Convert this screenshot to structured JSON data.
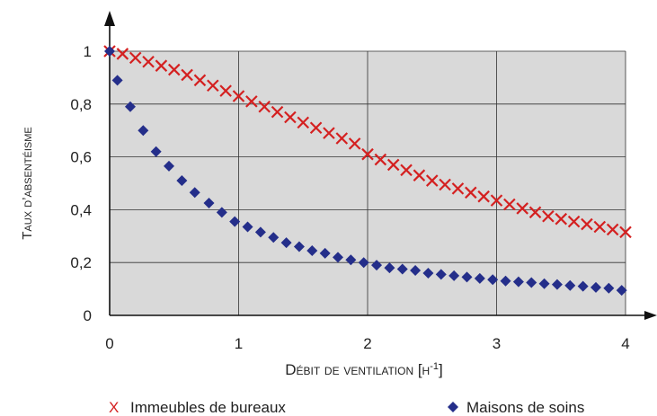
{
  "chart_data": {
    "type": "scatter",
    "xlabel": "Débit de ventilation [h",
    "xlabel_sup": "-1",
    "xlabel_end": "]",
    "ylabel": "Taux d’absentéisme",
    "xlim": [
      0,
      4
    ],
    "ylim": [
      0,
      1
    ],
    "x_ticks": [
      0,
      1,
      2,
      3,
      4
    ],
    "x_tick_labels": [
      "0",
      "1",
      "2",
      "3",
      "4"
    ],
    "y_ticks": [
      0,
      0.2,
      0.4,
      0.6,
      0.8,
      1
    ],
    "y_tick_labels": [
      "0",
      "0,2",
      "0,4",
      "0,6",
      "0,8",
      "1"
    ],
    "grid": true,
    "legend_position": "bottom",
    "series": [
      {
        "name": "Immeubles de bureaux",
        "marker": "x",
        "color": "#d42020",
        "x": [
          0,
          0.1,
          0.2,
          0.3,
          0.4,
          0.5,
          0.6,
          0.7,
          0.8,
          0.9,
          1.0,
          1.1,
          1.2,
          1.3,
          1.4,
          1.5,
          1.6,
          1.7,
          1.8,
          1.9,
          2.0,
          2.1,
          2.2,
          2.3,
          2.4,
          2.5,
          2.6,
          2.7,
          2.8,
          2.9,
          3.0,
          3.1,
          3.2,
          3.3,
          3.4,
          3.5,
          3.6,
          3.7,
          3.8,
          3.9,
          4.0
        ],
        "y": [
          1.0,
          0.99,
          0.975,
          0.96,
          0.945,
          0.93,
          0.91,
          0.89,
          0.87,
          0.85,
          0.83,
          0.81,
          0.79,
          0.77,
          0.75,
          0.73,
          0.71,
          0.69,
          0.67,
          0.65,
          0.61,
          0.59,
          0.57,
          0.55,
          0.53,
          0.51,
          0.495,
          0.48,
          0.465,
          0.45,
          0.435,
          0.42,
          0.405,
          0.39,
          0.375,
          0.365,
          0.355,
          0.345,
          0.335,
          0.325,
          0.315
        ]
      },
      {
        "name": "Maisons de soins",
        "marker": "diamond",
        "color": "#242e8a",
        "x": [
          0,
          0.06,
          0.16,
          0.26,
          0.36,
          0.46,
          0.56,
          0.66,
          0.77,
          0.87,
          0.97,
          1.07,
          1.17,
          1.27,
          1.37,
          1.47,
          1.57,
          1.67,
          1.77,
          1.87,
          1.97,
          2.07,
          2.17,
          2.27,
          2.37,
          2.47,
          2.57,
          2.67,
          2.77,
          2.87,
          2.97,
          3.07,
          3.17,
          3.27,
          3.37,
          3.47,
          3.57,
          3.67,
          3.77,
          3.87,
          3.97
        ],
        "y": [
          1.0,
          0.89,
          0.79,
          0.7,
          0.62,
          0.565,
          0.51,
          0.465,
          0.425,
          0.39,
          0.355,
          0.335,
          0.315,
          0.295,
          0.275,
          0.26,
          0.245,
          0.235,
          0.22,
          0.21,
          0.2,
          0.19,
          0.18,
          0.175,
          0.17,
          0.16,
          0.155,
          0.15,
          0.145,
          0.14,
          0.135,
          0.13,
          0.127,
          0.124,
          0.12,
          0.117,
          0.113,
          0.11,
          0.106,
          0.103,
          0.095
        ]
      }
    ]
  }
}
